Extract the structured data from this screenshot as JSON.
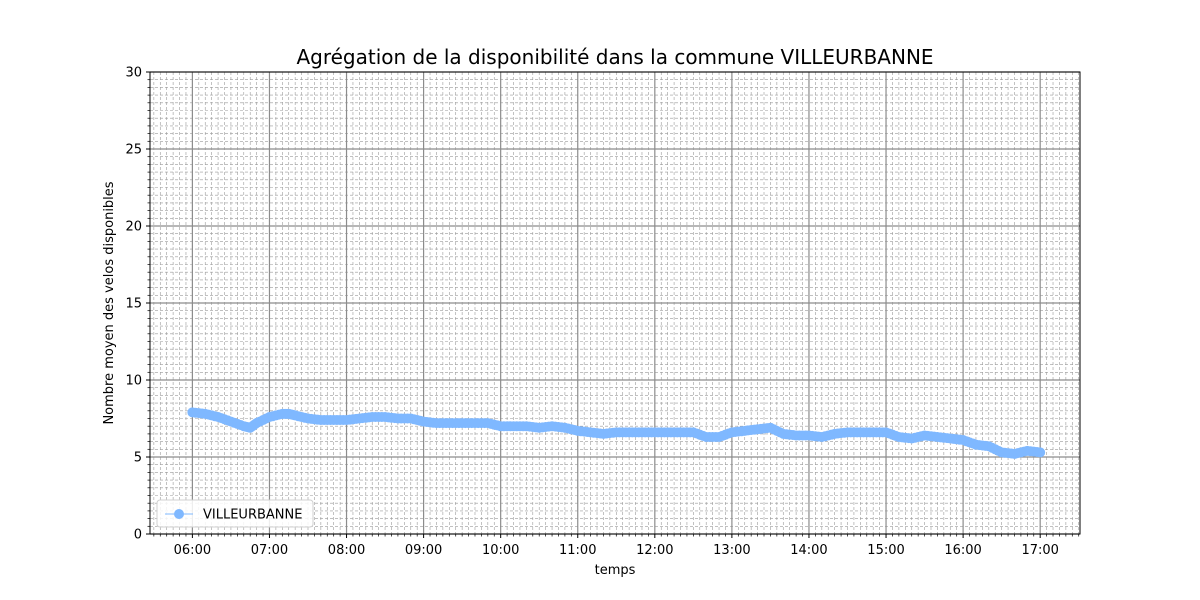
{
  "chart_data": {
    "type": "line",
    "title": "Agrégation de la disponibilité dans la commune VILLEURBANNE",
    "xlabel": "temps",
    "ylabel": "Nombre moyen des velos disponibles",
    "xlim": [
      "05:27",
      "17:31"
    ],
    "ylim": [
      0,
      30
    ],
    "yticks": [
      0,
      5,
      10,
      15,
      20,
      25,
      30
    ],
    "xticks": [
      "06:00",
      "07:00",
      "08:00",
      "09:00",
      "10:00",
      "11:00",
      "12:00",
      "13:00",
      "14:00",
      "15:00",
      "16:00",
      "17:00"
    ],
    "grid": true,
    "legend_position": "lower-left",
    "series": [
      {
        "name": "VILLEURBANNE",
        "color": "#7fb8ff",
        "marker": "circle",
        "x": [
          "06:00",
          "06:10",
          "06:20",
          "06:30",
          "06:40",
          "06:45",
          "06:50",
          "07:00",
          "07:10",
          "07:15",
          "07:20",
          "07:30",
          "07:40",
          "07:50",
          "08:00",
          "08:10",
          "08:20",
          "08:30",
          "08:40",
          "08:50",
          "09:00",
          "09:10",
          "09:20",
          "09:30",
          "09:40",
          "09:50",
          "10:00",
          "10:10",
          "10:20",
          "10:30",
          "10:40",
          "10:50",
          "11:00",
          "11:10",
          "11:20",
          "11:30",
          "11:40",
          "11:50",
          "12:00",
          "12:10",
          "12:20",
          "12:30",
          "12:40",
          "12:50",
          "13:00",
          "13:10",
          "13:20",
          "13:30",
          "13:40",
          "13:50",
          "14:00",
          "14:10",
          "14:20",
          "14:30",
          "14:40",
          "14:50",
          "15:00",
          "15:10",
          "15:20",
          "15:30",
          "15:40",
          "15:50",
          "16:00",
          "16:10",
          "16:20",
          "16:30",
          "16:40",
          "16:50",
          "17:00"
        ],
        "y": [
          7.9,
          7.8,
          7.6,
          7.3,
          7.0,
          6.9,
          7.2,
          7.6,
          7.8,
          7.8,
          7.7,
          7.5,
          7.4,
          7.4,
          7.4,
          7.5,
          7.6,
          7.6,
          7.5,
          7.5,
          7.3,
          7.2,
          7.2,
          7.2,
          7.2,
          7.2,
          7.0,
          7.0,
          7.0,
          6.9,
          7.0,
          6.9,
          6.7,
          6.6,
          6.5,
          6.6,
          6.6,
          6.6,
          6.6,
          6.6,
          6.6,
          6.6,
          6.3,
          6.3,
          6.6,
          6.7,
          6.8,
          6.9,
          6.5,
          6.4,
          6.4,
          6.3,
          6.5,
          6.6,
          6.6,
          6.6,
          6.6,
          6.3,
          6.2,
          6.4,
          6.3,
          6.2,
          6.1,
          5.8,
          5.7,
          5.3,
          5.2,
          5.4,
          5.3
        ]
      }
    ]
  }
}
